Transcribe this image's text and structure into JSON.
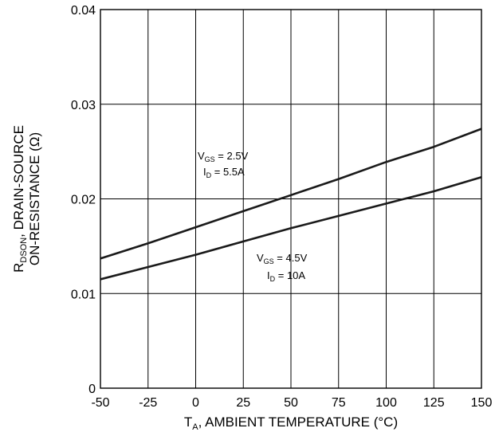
{
  "chart_data": {
    "type": "line",
    "title": "",
    "xlabel": {
      "main": "T",
      "sub": "A",
      "rest": ", AMBIENT TEMPERATURE (°C)"
    },
    "ylabel": {
      "line1": {
        "main": "R",
        "sub": "DSON",
        "rest": ", DRAIN-SOURCE"
      },
      "line2": "ON-RESISTANCE (Ω)"
    },
    "xlim": [
      -50,
      150
    ],
    "ylim": [
      0,
      0.04
    ],
    "x_ticks": [
      -50,
      -25,
      0,
      25,
      50,
      75,
      100,
      125,
      150
    ],
    "x_tick_labels": [
      "-50",
      "-25",
      "0",
      "25",
      "50",
      "75",
      "100",
      "125",
      "150"
    ],
    "y_ticks": [
      0,
      0.01,
      0.02,
      0.03,
      0.04
    ],
    "y_tick_labels": [
      "0",
      "0.01",
      "0.02",
      "0.03",
      "0.04"
    ],
    "grid": true,
    "series": [
      {
        "x": [
          -50,
          -25,
          0,
          25,
          50,
          75,
          100,
          125,
          150
        ],
        "y": [
          0.0137,
          0.0153,
          0.017,
          0.0187,
          0.0204,
          0.0221,
          0.0239,
          0.0255,
          0.0274
        ],
        "color": "#1a1a1a",
        "annotation": {
          "line1": {
            "main": "V",
            "sub": "GS",
            "rest": " = 2.5V"
          },
          "line2": {
            "main": "I",
            "sub": "D",
            "rest": " = 5.5A"
          }
        }
      },
      {
        "x": [
          -50,
          -25,
          0,
          25,
          50,
          75,
          100,
          125,
          150
        ],
        "y": [
          0.0115,
          0.0128,
          0.0141,
          0.0155,
          0.0169,
          0.0182,
          0.0195,
          0.0208,
          0.0223
        ],
        "color": "#1a1a1a",
        "annotation": {
          "line1": {
            "main": "V",
            "sub": "GS",
            "rest": " = 4.5V"
          },
          "line2": {
            "main": "I",
            "sub": "D",
            "rest": " = 10A"
          }
        }
      }
    ]
  }
}
